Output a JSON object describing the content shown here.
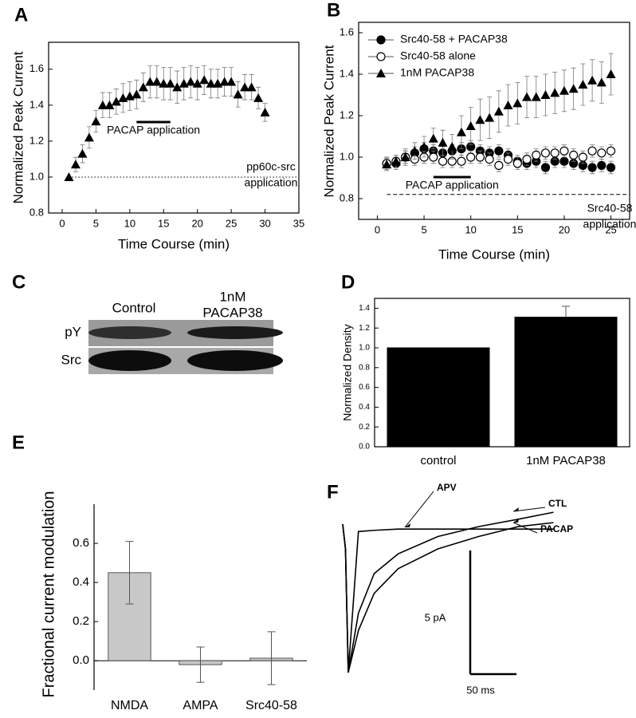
{
  "chart_data": [
    {
      "type": "scatter",
      "panel_label": "A",
      "xlabel": "Time Course (min)",
      "ylabel": "Normalized Peak Current",
      "x": [
        1,
        2,
        3,
        4,
        5,
        6,
        7,
        8,
        9,
        10,
        11,
        12,
        13,
        14,
        15,
        16,
        17,
        18,
        19,
        20,
        21,
        22,
        23,
        24,
        25,
        26,
        27,
        28,
        29,
        30
      ],
      "values": [
        1.0,
        1.07,
        1.13,
        1.22,
        1.31,
        1.4,
        1.4,
        1.42,
        1.44,
        1.45,
        1.46,
        1.5,
        1.53,
        1.53,
        1.52,
        1.52,
        1.5,
        1.52,
        1.53,
        1.52,
        1.54,
        1.52,
        1.52,
        1.53,
        1.53,
        1.46,
        1.5,
        1.5,
        1.44,
        1.36
      ],
      "errors": [
        0,
        0.04,
        0.05,
        0.06,
        0.06,
        0.07,
        0.07,
        0.07,
        0.08,
        0.08,
        0.08,
        0.08,
        0.09,
        0.09,
        0.09,
        0.09,
        0.09,
        0.09,
        0.09,
        0.09,
        0.08,
        0.08,
        0.08,
        0.08,
        0.08,
        0.07,
        0.07,
        0.07,
        0.06,
        0.05
      ],
      "marker": "triangle",
      "color": "#000000",
      "xlim": [
        -2,
        35
      ],
      "xticks": [
        0,
        5,
        10,
        15,
        20,
        25,
        30,
        35
      ],
      "ylim": [
        0.8,
        1.75
      ],
      "yticks": [
        0.8,
        {
          "value": 1,
          "label": "1.0"
        },
        1.2,
        1.4,
        1.6
      ],
      "frame": true,
      "window": [
        11,
        16
      ],
      "window_label": "PACAP application",
      "reference_line": 1.0,
      "reference_label": [
        "pp60c-src",
        "application"
      ]
    },
    {
      "type": "scatter",
      "panel_label": "B",
      "xlabel": "Time Course (min)",
      "ylabel": "Normalized Peak Current",
      "x": [
        1,
        2,
        3,
        4,
        5,
        6,
        7,
        8,
        9,
        10,
        11,
        12,
        13,
        14,
        15,
        16,
        17,
        18,
        19,
        20,
        21,
        22,
        23,
        24,
        25
      ],
      "series": [
        {
          "name": "Src40-58 + PACAP38",
          "marker": "filled-circle",
          "color": "#000000",
          "values": [
            0.97,
            0.97,
            1.0,
            1.02,
            1.04,
            1.03,
            1.02,
            1.03,
            1.04,
            1.05,
            1.03,
            1.02,
            1.03,
            1.01,
            0.98,
            0.97,
            0.98,
            0.95,
            0.98,
            0.98,
            0.97,
            0.96,
            0.95,
            0.96,
            0.95
          ],
          "errors": [
            0.03,
            0.03,
            0.03,
            0.03,
            0.03,
            0.03,
            0.03,
            0.03,
            0.03,
            0.03,
            0.03,
            0.03,
            0.03,
            0.03,
            0.03,
            0.03,
            0.03,
            0.03,
            0.03,
            0.03,
            0.03,
            0.03,
            0.03,
            0.03,
            0.03
          ]
        },
        {
          "name": "Src40-58 alone",
          "marker": "open-circle",
          "color": "#000000",
          "values": [
            0.97,
            0.98,
            1.0,
            0.99,
            1.0,
            1.0,
            0.98,
            0.98,
            0.98,
            1.0,
            1.0,
            0.99,
            0.96,
            0.99,
            0.97,
            0.99,
            1.01,
            1.02,
            1.02,
            1.03,
            1.01,
            1.0,
            1.03,
            1.02,
            1.03
          ],
          "errors": [
            0.03,
            0.03,
            0.03,
            0.03,
            0.03,
            0.03,
            0.03,
            0.03,
            0.03,
            0.03,
            0.03,
            0.03,
            0.03,
            0.03,
            0.03,
            0.03,
            0.03,
            0.03,
            0.03,
            0.03,
            0.03,
            0.03,
            0.03,
            0.03,
            0.03
          ]
        },
        {
          "name": "1nM PACAP38",
          "marker": "triangle",
          "color": "#000000",
          "values": [
            0.965,
            0.98,
            1.0,
            1.03,
            1.05,
            1.09,
            1.07,
            1.05,
            1.12,
            1.15,
            1.18,
            1.19,
            1.22,
            1.25,
            1.26,
            1.29,
            1.29,
            1.3,
            1.31,
            1.32,
            1.33,
            1.35,
            1.37,
            1.36,
            1.4
          ],
          "errors": [
            0.03,
            0.03,
            0.04,
            0.04,
            0.05,
            0.05,
            0.06,
            0.06,
            0.08,
            0.09,
            0.1,
            0.1,
            0.1,
            0.1,
            0.1,
            0.1,
            0.1,
            0.1,
            0.1,
            0.1,
            0.1,
            0.1,
            0.1,
            0.1,
            0.1
          ]
        }
      ],
      "xlim": [
        -2,
        27
      ],
      "xticks": [
        0,
        5,
        10,
        15,
        20,
        25
      ],
      "ylim": [
        0.7,
        1.65
      ],
      "yticks": [
        0.8,
        {
          "value": 1,
          "label": "1.0"
        },
        1.2,
        1.4,
        1.6
      ],
      "frame": true,
      "legend": "top-left",
      "window": [
        6,
        10
      ],
      "window_label": "PACAP application",
      "reference_line": 0.82,
      "reference_label": [
        "Src40-58",
        "application"
      ]
    },
    {
      "type": "bar",
      "panel_label": "D",
      "ylabel": "Normalized Density",
      "categories": [
        "control",
        "1nM PACAP38"
      ],
      "values": [
        1.0,
        1.31
      ],
      "errors": [
        0,
        0.11
      ],
      "color": "#000000",
      "ylim": [
        0,
        1.5
      ],
      "yticks": [
        {
          "value": 0,
          "label": "0.0"
        },
        0.2,
        0.4,
        0.6,
        0.8,
        {
          "value": 1,
          "label": "1.0"
        },
        1.2,
        1.4
      ],
      "frame": true
    },
    {
      "type": "bar",
      "panel_label": "E",
      "ylabel": "Fractional current modulation",
      "categories": [
        "NMDA",
        "AMPA",
        "Src40-58"
      ],
      "values": [
        0.45,
        -0.02,
        0.013
      ],
      "errors": [
        0.16,
        0.09,
        0.135
      ],
      "color": "#c8c8c8",
      "ylim": [
        -0.15,
        0.8
      ],
      "yticks": [
        {
          "value": 0,
          "label": "0.0"
        },
        0.2,
        0.4,
        0.6
      ],
      "frame": false
    },
    {
      "type": "line",
      "panel_label": "F",
      "x": [
        0,
        3,
        6,
        17,
        34,
        60,
        103,
        147,
        190,
        228
      ],
      "series": [
        {
          "name": "APV",
          "color": "#000000",
          "values": [
            0,
            -1,
            -6,
            -0.3,
            -0.25,
            -0.2,
            -0.2,
            -0.2,
            -0.2,
            -0.2
          ]
        },
        {
          "name": "CTL",
          "color": "#000000",
          "values": [
            0,
            -1,
            -6,
            -3.6,
            -2.0,
            -1.2,
            -0.5,
            -0.1,
            0.2,
            0.48
          ]
        },
        {
          "name": "PACAP",
          "color": "#000000",
          "values": [
            0,
            -1,
            -6,
            -4.3,
            -2.8,
            -1.8,
            -1.0,
            -0.5,
            -0.1,
            0.06
          ]
        }
      ],
      "y_scale_bar": {
        "value": 5,
        "label": "5 pA"
      },
      "x_scale_bar": {
        "value": 50,
        "label": "50 ms"
      }
    }
  ],
  "blot": {
    "panel_label": "C",
    "lanes": [
      [
        "Control"
      ],
      [
        "1nM",
        "PACAP38"
      ]
    ],
    "rows": [
      "pY",
      "Src"
    ]
  }
}
